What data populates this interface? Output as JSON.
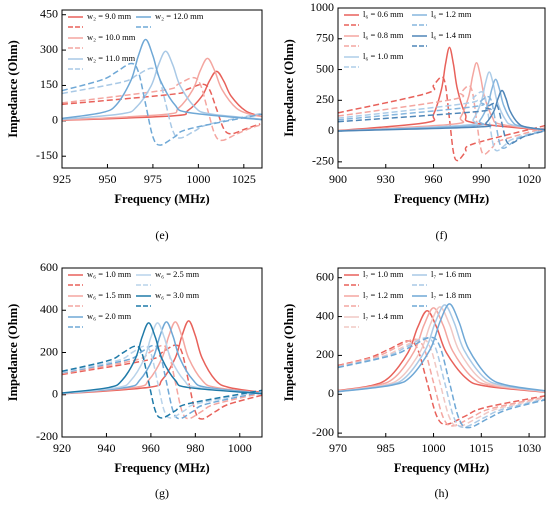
{
  "chart_data": [
    {
      "type": "line",
      "caption": "(e)",
      "xlabel": "Frequency (MHz)",
      "ylabel": "Impedance (Ohm)",
      "xlim": [
        925,
        1035
      ],
      "xticks": [
        925,
        950,
        975,
        1000,
        1025
      ],
      "ylim": [
        -200,
        470
      ],
      "yticks": [
        -150,
        0,
        150,
        300,
        450
      ],
      "series": [
        {
          "name": "w₂ = 9.0 mm",
          "color": "#e8615a",
          "x": [
            925,
            986,
            994,
            1002,
            1006,
            1010,
            1014,
            1018,
            1026,
            1034
          ],
          "values": [
            2,
            21,
            42,
            105,
            168,
            210,
            168,
            105,
            42,
            21
          ],
          "reactance": [
            70,
            113,
            134,
            155,
            134,
            50,
            -34,
            -55,
            -34,
            -13
          ]
        },
        {
          "name": "w₂ = 10.0 mm",
          "color": "#f4a6a0",
          "x": [
            925,
            981,
            989,
            997,
            1001,
            1005,
            1009,
            1013,
            1021,
            1029,
            1035
          ],
          "values": [
            3,
            27,
            53,
            133,
            212,
            265,
            212,
            133,
            53,
            27,
            18
          ],
          "reactance": [
            76,
            130,
            156,
            183,
            156,
            50,
            -56,
            -83,
            -56,
            -30,
            -16
          ]
        },
        {
          "name": "w₂ = 11.0 mm",
          "color": "#a9c9e6",
          "x": [
            925,
            958,
            966,
            974,
            978,
            982,
            986,
            990,
            998,
            1006,
            1035
          ],
          "values": [
            6,
            30,
            59,
            148,
            236,
            295,
            236,
            148,
            59,
            30,
            7
          ],
          "reactance": [
            116,
            164,
            193,
            223,
            193,
            75,
            -43,
            -73,
            -43,
            -14,
            32
          ]
        },
        {
          "name": "w₂ = 12.0 mm",
          "color": "#6fa8d6",
          "x": [
            925,
            947,
            955,
            963,
            967,
            971,
            975,
            979,
            987,
            995,
            1035
          ],
          "values": [
            10,
            35,
            69,
            173,
            276,
            345,
            276,
            173,
            69,
            35,
            5
          ],
          "reactance": [
            128,
            174,
            208,
            243,
            208,
            70,
            -68,
            -103,
            -68,
            -34,
            28
          ]
        }
      ]
    },
    {
      "type": "line",
      "caption": "(f)",
      "xlabel": "Frequency (MHz)",
      "ylabel": "Impedance (Ohm)",
      "xlim": [
        900,
        1030
      ],
      "xticks": [
        900,
        930,
        960,
        990,
        1020
      ],
      "ylim": [
        -300,
        1000
      ],
      "yticks": [
        -250,
        0,
        250,
        500,
        750,
        1000
      ],
      "series": [
        {
          "name": "l₆ = 0.6 mm",
          "color": "#e8615a",
          "x": [
            900,
            955,
            960,
            965,
            967.5,
            970,
            972.5,
            975,
            980,
            985,
            1030
          ],
          "values": [
            3,
            68,
            136,
            340,
            544,
            680,
            544,
            340,
            136,
            68,
            5
          ],
          "reactance": [
            148,
            304,
            372,
            440,
            372,
            100,
            -172,
            -240,
            -172,
            -104,
            44
          ]
        },
        {
          "name": "l₆ = 0.8 mm",
          "color": "#f4a6a0",
          "x": [
            900,
            972,
            977,
            982,
            984.5,
            987,
            989.5,
            992,
            997,
            1002,
            1030
          ],
          "values": [
            2,
            56,
            111,
            278,
            444,
            555,
            444,
            278,
            111,
            56,
            7
          ],
          "reactance": [
            122,
            257,
            312,
            368,
            312,
            90,
            -132,
            -188,
            -132,
            -77,
            26
          ]
        },
        {
          "name": "l₆ = 1.0 mm",
          "color": "#aecde8",
          "x": [
            900,
            980,
            985,
            990,
            992.5,
            995,
            997.5,
            1000,
            1005,
            1010,
            1030
          ],
          "values": [
            1,
            48,
            96,
            240,
            384,
            480,
            384,
            240,
            96,
            48,
            10
          ],
          "reactance": [
            105,
            224,
            272,
            320,
            272,
            80,
            -112,
            -160,
            -112,
            -64,
            13
          ]
        },
        {
          "name": "l₆ = 1.2 mm",
          "color": "#86b6de",
          "x": [
            900,
            984,
            989,
            994,
            996.5,
            999,
            1001.5,
            1004,
            1009,
            1014,
            1030
          ],
          "values": [
            1,
            42,
            84,
            210,
            336,
            420,
            336,
            210,
            84,
            42,
            11
          ],
          "reactance": [
            91,
            196,
            238,
            280,
            238,
            70,
            -98,
            -140,
            -98,
            -56,
            4
          ]
        },
        {
          "name": "l₆ = 1.4 mm",
          "color": "#4f86b8",
          "x": [
            900,
            988,
            993,
            998,
            1000.5,
            1003,
            1005.5,
            1008,
            1013,
            1018,
            1030
          ],
          "values": [
            1,
            33,
            66,
            165,
            264,
            330,
            264,
            165,
            66,
            33,
            11
          ],
          "reactance": [
            76,
            159,
            192,
            225,
            192,
            60,
            -72,
            -105,
            -72,
            -39,
            1
          ]
        }
      ]
    },
    {
      "type": "line",
      "caption": "(g)",
      "xlabel": "Frequency (MHz)",
      "ylabel": "Impedance (Ohm)",
      "xlim": [
        920,
        1010
      ],
      "xticks": [
        920,
        940,
        960,
        980,
        1000
      ],
      "ylim": [
        -200,
        600
      ],
      "yticks": [
        -200,
        0,
        200,
        400,
        600
      ],
      "series": [
        {
          "name": "w₆ = 1.0 mm",
          "color": "#e8615a",
          "x": [
            920,
            959,
            965,
            971,
            974,
            977,
            980,
            983,
            989,
            995,
            1010
          ],
          "values": [
            4,
            35,
            70,
            175,
            280,
            350,
            280,
            175,
            70,
            35,
            11
          ],
          "reactance": [
            96,
            165,
            200,
            235,
            200,
            60,
            -80,
            -115,
            -80,
            -45,
            -2
          ]
        },
        {
          "name": "w₆ = 1.5 mm",
          "color": "#f4a6a0",
          "x": [
            920,
            953,
            959,
            965,
            968,
            971,
            974,
            977,
            983,
            989,
            1010
          ],
          "values": [
            5,
            35,
            69,
            173,
            276,
            345,
            276,
            173,
            69,
            35,
            8
          ],
          "reactance": [
            100,
            164,
            198,
            233,
            198,
            60,
            -78,
            -113,
            -78,
            -44,
            8
          ]
        },
        {
          "name": "w₆ = 2.0 mm",
          "color": "#6fa8d6",
          "x": [
            920,
            949,
            955,
            961,
            964,
            967,
            970,
            973,
            979,
            985,
            1010
          ],
          "values": [
            6,
            35,
            69,
            173,
            276,
            345,
            276,
            173,
            69,
            35,
            7
          ],
          "reactance": [
            104,
            164,
            198,
            233,
            198,
            60,
            -78,
            -113,
            -78,
            -44,
            13
          ]
        },
        {
          "name": "w₆ = 2.5 mm",
          "color": "#b9d3ea",
          "x": [
            920,
            945,
            951,
            957,
            960,
            963,
            966,
            969,
            975,
            981,
            1010
          ],
          "values": [
            6,
            34,
            68,
            170,
            272,
            340,
            272,
            170,
            68,
            34,
            5
          ],
          "reactance": [
            106,
            162,
            196,
            230,
            196,
            60,
            -76,
            -110,
            -76,
            -42,
            17
          ]
        },
        {
          "name": "w₆ = 3.0 mm",
          "color": "#1f7aa8",
          "x": [
            920,
            941,
            947,
            953,
            956,
            959,
            962,
            965,
            971,
            977,
            1010
          ],
          "values": [
            8,
            34,
            68,
            170,
            272,
            340,
            272,
            170,
            68,
            34,
            5
          ],
          "reactance": [
            111,
            162,
            196,
            230,
            196,
            60,
            -76,
            -110,
            -76,
            -42,
            21
          ]
        }
      ]
    },
    {
      "type": "line",
      "caption": "(h)",
      "xlabel": "Frequency (MHz)",
      "ylabel": "Impedance (Ohm)",
      "xlim": [
        970,
        1035
      ],
      "xticks": [
        970,
        985,
        1000,
        1015,
        1030
      ],
      "ylim": [
        -220,
        650
      ],
      "yticks": [
        -200,
        0,
        200,
        400,
        600
      ],
      "series": [
        {
          "name": "l₇ = 1.0 mm",
          "color": "#e8615a",
          "x": [
            970,
            980,
            986,
            992,
            995,
            998,
            1001,
            1004,
            1010,
            1016,
            1035
          ],
          "values": [
            19,
            43,
            86,
            215,
            344,
            430,
            344,
            215,
            86,
            43,
            11
          ],
          "reactance": [
            148,
            189,
            232,
            275,
            232,
            60,
            -112,
            -155,
            -112,
            -69,
            -8
          ]
        },
        {
          "name": "l₇ = 1.2 mm",
          "color": "#f4a6a0",
          "x": [
            970,
            982,
            988,
            994,
            997,
            1000,
            1003,
            1006,
            1012,
            1018,
            1035
          ],
          "values": [
            17,
            45,
            89,
            223,
            356,
            445,
            356,
            223,
            89,
            45,
            13
          ],
          "reactance": [
            145,
            194,
            238,
            283,
            238,
            60,
            -118,
            -163,
            -118,
            -74,
            -14
          ]
        },
        {
          "name": "l₇ = 1.4 mm",
          "color": "#f0c8c4",
          "x": [
            970,
            984,
            990,
            996,
            999,
            1002,
            1005,
            1008,
            1014,
            1020,
            1035
          ],
          "values": [
            15,
            45,
            90,
            225,
            360,
            450,
            360,
            225,
            90,
            45,
            14
          ],
          "reactance": [
            141,
            195,
            240,
            285,
            240,
            60,
            -120,
            -165,
            -120,
            -75,
            -19
          ]
        },
        {
          "name": "l₇ = 1.6 mm",
          "color": "#a9c9e6",
          "x": [
            970,
            985.5,
            991.5,
            997.5,
            1000.5,
            1003.5,
            1006.5,
            1009.5,
            1015.5,
            1021.5,
            1035
          ],
          "values": [
            14,
            46,
            92,
            230,
            368,
            460,
            368,
            230,
            92,
            46,
            16
          ],
          "reactance": [
            140,
            198,
            244,
            290,
            244,
            60,
            -124,
            -170,
            -124,
            -78,
            -25
          ]
        },
        {
          "name": "l₇ = 1.8 mm",
          "color": "#6fa8d6",
          "x": [
            970,
            987,
            993,
            999,
            1002,
            1005,
            1008,
            1011,
            1017,
            1023,
            1035
          ],
          "values": [
            13,
            47,
            93,
            233,
            372,
            465,
            372,
            233,
            93,
            47,
            18
          ],
          "reactance": [
            138,
            200,
            246,
            293,
            246,
            60,
            -126,
            -172,
            -126,
            -80,
            -29
          ]
        }
      ]
    }
  ]
}
